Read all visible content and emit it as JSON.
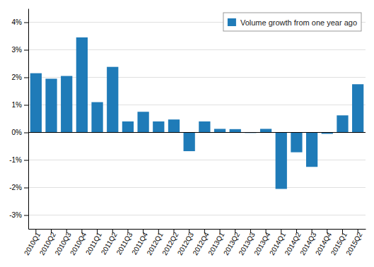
{
  "chart_data": {
    "type": "bar",
    "categories": [
      "2010Q1",
      "2010Q2",
      "2010Q3",
      "2010Q4",
      "2011Q1",
      "2011Q2",
      "2011Q3",
      "2011Q4",
      "2012Q1",
      "2012Q2",
      "2012Q3",
      "2012Q4",
      "2013Q1",
      "2013Q2",
      "2013Q3",
      "2013Q4",
      "2014Q1",
      "2014Q2",
      "2014Q3",
      "2014Q4",
      "2015Q1",
      "2015Q2"
    ],
    "series": [
      {
        "name": "Volume growth from one year ago",
        "color": "#1f7bb8",
        "values": [
          2.15,
          1.95,
          2.05,
          3.45,
          1.1,
          2.38,
          0.4,
          0.75,
          0.4,
          0.47,
          -0.68,
          0.4,
          0.13,
          0.12,
          -0.02,
          0.13,
          -2.05,
          -0.72,
          -1.25,
          -0.05,
          0.62,
          1.75
        ]
      }
    ],
    "ylim": [
      -3.5,
      4.5
    ],
    "yticks": [
      {
        "value": -3,
        "label": "-3%"
      },
      {
        "value": -2,
        "label": "-2%"
      },
      {
        "value": -1,
        "label": "-1%"
      },
      {
        "value": 0,
        "label": "0%"
      },
      {
        "value": 1,
        "label": "1%"
      },
      {
        "value": 2,
        "label": "2%"
      },
      {
        "value": 3,
        "label": "3%"
      },
      {
        "value": 4,
        "label": "4%"
      }
    ],
    "grid": true,
    "legend": "upper right"
  }
}
